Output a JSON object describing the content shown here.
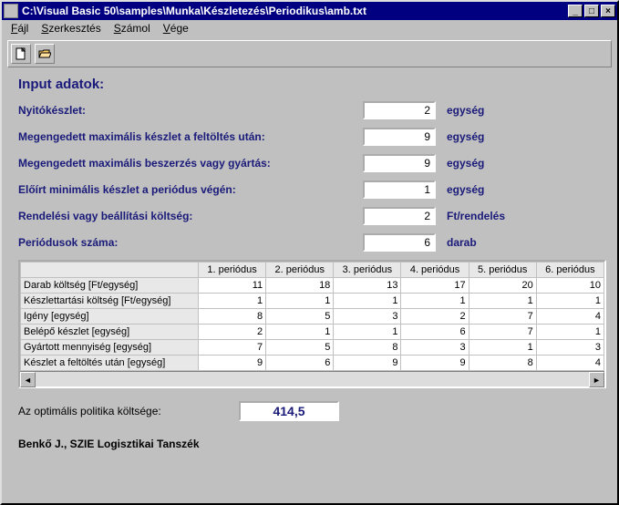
{
  "window": {
    "title": "C:\\Visual Basic 50\\samples\\Munka\\Készletezés\\Periodikus\\amb.txt"
  },
  "menu": {
    "file": "Fájl",
    "edit": "Szerkesztés",
    "calc": "Számol",
    "end": "Vége"
  },
  "heading": "Input adatok:",
  "fields": {
    "f1": {
      "label": "Nyitókészlet:",
      "value": "2",
      "unit": "egység"
    },
    "f2": {
      "label": "Megengedett maximális készlet a feltöltés után:",
      "value": "9",
      "unit": "egység"
    },
    "f3": {
      "label": "Megengedett maximális beszerzés vagy gyártás:",
      "value": "9",
      "unit": "egység"
    },
    "f4": {
      "label": "Előírt minimális készlet a periódus végén:",
      "value": "1",
      "unit": "egység"
    },
    "f5": {
      "label": "Rendelési vagy beállítási költség:",
      "value": "2",
      "unit": "Ft/rendelés"
    },
    "f6": {
      "label": "Periódusok száma:",
      "value": "6",
      "unit": "darab"
    }
  },
  "table": {
    "columns": [
      "1. periódus",
      "2. periódus",
      "3. periódus",
      "4. periódus",
      "5. periódus",
      "6. periódus"
    ],
    "rows": [
      {
        "label": "Darab költség [Ft/egység]",
        "vals": [
          "11",
          "18",
          "13",
          "17",
          "20",
          "10"
        ]
      },
      {
        "label": "Készlettartási költség [Ft/egység]",
        "vals": [
          "1",
          "1",
          "1",
          "1",
          "1",
          "1"
        ]
      },
      {
        "label": "Igény [egység]",
        "vals": [
          "8",
          "5",
          "3",
          "2",
          "7",
          "4"
        ]
      },
      {
        "label": "Belépő készlet [egység]",
        "vals": [
          "2",
          "1",
          "1",
          "6",
          "7",
          "1"
        ]
      },
      {
        "label": "Gyártott mennyiség [egység]",
        "vals": [
          "7",
          "5",
          "8",
          "3",
          "1",
          "3"
        ]
      },
      {
        "label": "Készlet a feltöltés után [egység]",
        "vals": [
          "9",
          "6",
          "9",
          "9",
          "8",
          "4"
        ]
      }
    ]
  },
  "result": {
    "label": "Az optimális politika költsége:",
    "value": "414,5"
  },
  "footer": "Benkő J., SZIE Logisztikai Tanszék",
  "style": {
    "accent": "#1a1a7a",
    "bg": "#c0c0c0"
  }
}
